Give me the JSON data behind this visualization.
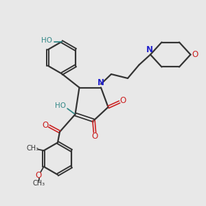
{
  "bg_color": "#e8e8e8",
  "bond_color": "#333333",
  "N_color": "#2222cc",
  "O_color": "#cc2222",
  "OH_color": "#338888",
  "figsize": [
    3.0,
    3.0
  ],
  "dpi": 100,
  "xlim": [
    0,
    10
  ],
  "ylim": [
    0,
    10
  ]
}
